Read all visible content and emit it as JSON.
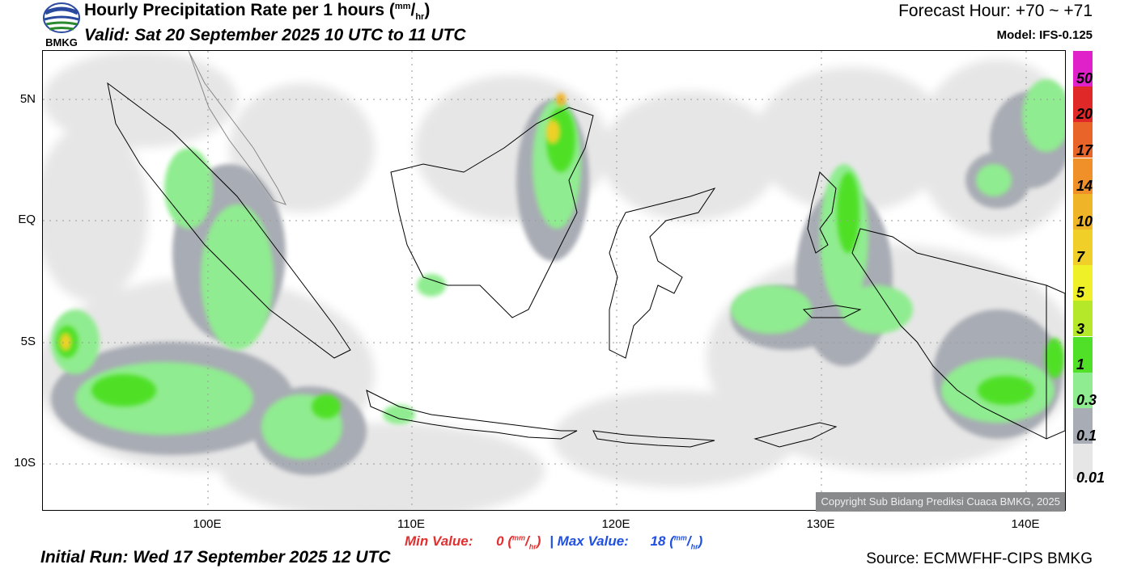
{
  "header": {
    "title_main": "Hourly Precipitation Rate per 1 hours (",
    "title_unit_num": "mm",
    "title_unit_sep": "/",
    "title_unit_den": "hr",
    "title_close": ")",
    "valid": "Valid: Sat 20 September 2025 10 UTC to 11 UTC",
    "forecast_hour": "Forecast Hour: +70 ~ +71",
    "model": "Model: IFS-0.125",
    "logo_text": "BMKG"
  },
  "map": {
    "lat_labels": [
      "5N",
      "EQ",
      "5S",
      "10S"
    ],
    "lon_labels": [
      "100E",
      "110E",
      "120E",
      "130E",
      "140E"
    ],
    "copyright": "Copyright Sub Bidang Prediksi Cuaca BMKG, 2025"
  },
  "colorbar": {
    "labels": [
      "50",
      "20",
      "17",
      "14",
      "10",
      "7",
      "5",
      "3",
      "1",
      "0.3",
      "0.1",
      "0.01"
    ],
    "colors": [
      "#e020c8",
      "#e02828",
      "#e86428",
      "#f09028",
      "#f0b428",
      "#f0d028",
      "#f0f028",
      "#b4e828",
      "#50e028",
      "#90ec90",
      "#a8acb4",
      "#e6e6e6"
    ]
  },
  "footer": {
    "min_label": "Min Value:",
    "min_value": "0",
    "max_label": "Max Value:",
    "max_value": "18",
    "unit_num": "mm",
    "unit_den": "hr",
    "separator": "|",
    "initial_run": "Initial Run: Wed 17 September 2025 12 UTC",
    "source": "Source: ECMWFHF-CIPS BMKG"
  }
}
